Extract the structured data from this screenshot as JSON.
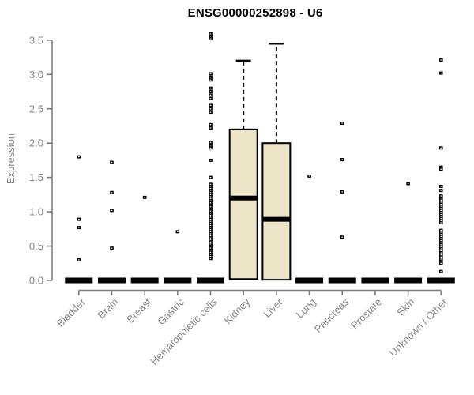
{
  "colors": {
    "axis": "#7E7E7E",
    "text": "#858585",
    "title": "#000000",
    "box_fill": "#ECE5C8",
    "marks": "#000000",
    "background": "#FFFFFF"
  },
  "chart_data": {
    "type": "boxplot",
    "title": "ENSG00000252898 - U6",
    "xlabel": "",
    "ylabel": "Expression",
    "ylim": [
      0,
      3.6
    ],
    "yticks": [
      "0.0",
      "0.5",
      "1.0",
      "1.5",
      "2.0",
      "2.5",
      "3.0",
      "3.5"
    ],
    "grid": false,
    "legend": "none",
    "categories": [
      "Bladder",
      "Brain",
      "Breast",
      "Gastric",
      "Hematopoietic cells",
      "Kidney",
      "Liver",
      "Lung",
      "Pancreas",
      "Prostate",
      "Skin",
      "Unknown / Other"
    ],
    "series": [
      {
        "category": "Bladder",
        "box": {
          "median": 0,
          "q1": 0,
          "q3": 0,
          "whisker_low": 0,
          "whisker_high": 0
        },
        "points": [
          1.8,
          0.89,
          0.77,
          0.3
        ]
      },
      {
        "category": "Brain",
        "box": {
          "median": 0,
          "q1": 0,
          "q3": 0,
          "whisker_low": 0,
          "whisker_high": 0
        },
        "points": [
          1.72,
          1.28,
          1.02,
          0.47
        ]
      },
      {
        "category": "Breast",
        "box": {
          "median": 0,
          "q1": 0,
          "q3": 0,
          "whisker_low": 0,
          "whisker_high": 0
        },
        "points": [
          1.21
        ]
      },
      {
        "category": "Gastric",
        "box": {
          "median": 0,
          "q1": 0,
          "q3": 0,
          "whisker_low": 0,
          "whisker_high": 0
        },
        "points": [
          0.71
        ]
      },
      {
        "category": "Hematopoietic cells",
        "box": {
          "median": 0,
          "q1": 0,
          "q3": 0,
          "whisker_low": 0,
          "whisker_high": 0
        },
        "points": [
          3.59,
          3.56,
          3.52,
          3.01,
          2.96,
          2.92,
          2.8,
          2.75,
          2.7,
          2.65,
          2.55,
          2.5,
          2.45,
          2.27,
          2.22,
          2.01,
          1.97,
          1.93,
          1.75,
          1.5,
          1.4,
          1.37,
          1.34,
          1.31,
          1.28,
          1.25,
          1.22,
          1.19,
          1.16,
          1.13,
          1.1,
          1.07,
          1.04,
          1.01,
          0.98,
          0.95,
          0.92,
          0.89,
          0.86,
          0.83,
          0.8,
          0.77,
          0.74,
          0.71,
          0.68,
          0.65,
          0.62,
          0.59,
          0.56,
          0.53,
          0.5,
          0.47,
          0.44,
          0.41,
          0.38,
          0.35,
          0.32
        ]
      },
      {
        "category": "Kidney",
        "box": {
          "median": 1.2,
          "q1": 0.02,
          "q3": 2.2,
          "whisker_low": 0.02,
          "whisker_high": 3.2
        },
        "points": []
      },
      {
        "category": "Liver",
        "box": {
          "median": 0.89,
          "q1": 0.01,
          "q3": 2.0,
          "whisker_low": 0.01,
          "whisker_high": 3.45
        },
        "points": []
      },
      {
        "category": "Lung",
        "box": {
          "median": 0,
          "q1": 0,
          "q3": 0,
          "whisker_low": 0,
          "whisker_high": 0
        },
        "points": [
          1.52
        ]
      },
      {
        "category": "Pancreas",
        "box": {
          "median": 0,
          "q1": 0,
          "q3": 0,
          "whisker_low": 0,
          "whisker_high": 0
        },
        "points": [
          2.29,
          1.76,
          1.29,
          0.63
        ]
      },
      {
        "category": "Prostate",
        "box": {
          "median": 0,
          "q1": 0,
          "q3": 0,
          "whisker_low": 0,
          "whisker_high": 0
        },
        "points": []
      },
      {
        "category": "Skin",
        "box": {
          "median": 0,
          "q1": 0,
          "q3": 0,
          "whisker_low": 0,
          "whisker_high": 0
        },
        "points": [
          1.41
        ]
      },
      {
        "category": "Unknown / Other",
        "box": {
          "median": 0,
          "q1": 0,
          "q3": 0,
          "whisker_low": 0,
          "whisker_high": 0
        },
        "points": [
          3.21,
          3.02,
          1.93,
          1.65,
          1.62,
          1.37,
          1.31,
          1.23,
          1.2,
          1.17,
          1.14,
          1.11,
          1.08,
          1.05,
          1.02,
          0.99,
          0.96,
          0.93,
          0.9,
          0.87,
          0.84,
          0.73,
          0.7,
          0.67,
          0.64,
          0.61,
          0.58,
          0.55,
          0.52,
          0.49,
          0.46,
          0.43,
          0.4,
          0.37,
          0.34,
          0.31,
          0.28,
          0.25,
          0.13
        ]
      }
    ]
  }
}
